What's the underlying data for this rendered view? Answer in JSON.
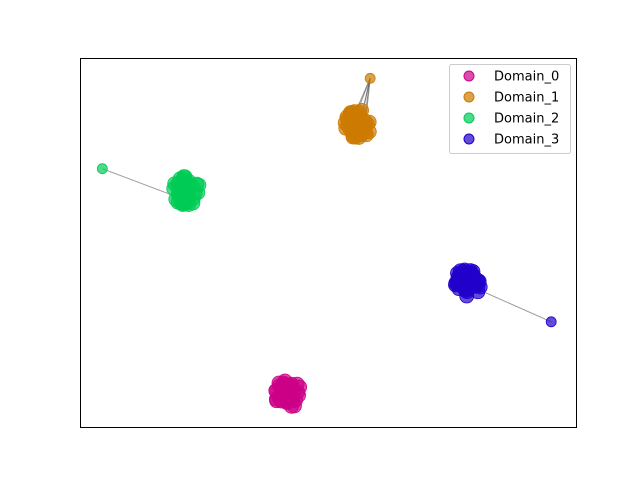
{
  "chart_data": {
    "type": "scatter",
    "title": "",
    "xlabel": "",
    "ylabel": "",
    "axes_ticks": false,
    "grid": false,
    "legend_position": "top-right",
    "xlim": [
      0,
      10
    ],
    "ylim": [
      0,
      10
    ],
    "series": [
      {
        "name": "Domain_0",
        "color": "#cc0088",
        "center": [
          4.2,
          0.9
        ],
        "spread": 0.28,
        "count": 40,
        "outliers": []
      },
      {
        "name": "Domain_1",
        "color": "#cc7a00",
        "center": [
          5.6,
          8.2
        ],
        "spread": 0.28,
        "count": 40,
        "outliers": [
          [
            5.85,
            9.45
          ]
        ]
      },
      {
        "name": "Domain_2",
        "color": "#00cc55",
        "center": [
          2.15,
          6.4
        ],
        "spread": 0.28,
        "count": 40,
        "outliers": [
          [
            0.45,
            7.0
          ]
        ]
      },
      {
        "name": "Domain_3",
        "color": "#2200cc",
        "center": [
          7.8,
          3.9
        ],
        "spread": 0.28,
        "count": 40,
        "outliers": [
          [
            9.5,
            2.85
          ]
        ]
      }
    ]
  }
}
